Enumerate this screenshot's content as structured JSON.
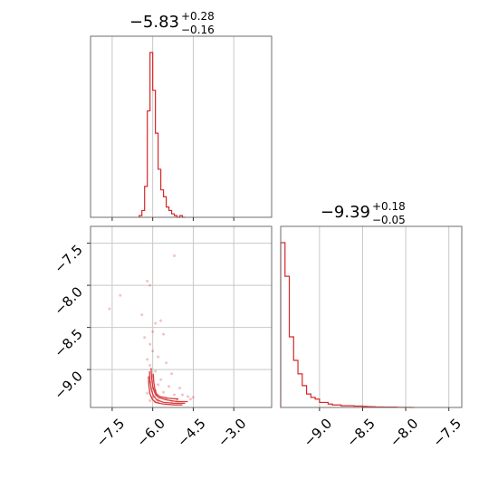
{
  "chart_data": [
    {
      "type": "histogram",
      "panel": "marginal-param-1",
      "title": {
        "median": "−5.83",
        "plus": "+0.28",
        "minus": "−0.16"
      },
      "xlim": [
        -8.3,
        -1.6
      ],
      "xticks": [
        -7.5,
        -6.0,
        -4.5,
        -3.0
      ],
      "grid": true,
      "bins": {
        "edges": [
          -6.5,
          -6.4,
          -6.3,
          -6.2,
          -6.1,
          -6.0,
          -5.9,
          -5.8,
          -5.7,
          -5.6,
          -5.5,
          -5.4,
          -5.3,
          -5.2,
          -5.1,
          -5.0,
          -4.9,
          -4.8
        ],
        "counts": [
          0.01,
          0.04,
          0.18,
          0.62,
          0.96,
          0.74,
          0.49,
          0.28,
          0.16,
          0.12,
          0.06,
          0.04,
          0.02,
          0.01,
          0.0,
          0.01,
          0.0
        ]
      }
    },
    {
      "type": "scatter",
      "panel": "joint-param-1-vs-param-2",
      "xlim": [
        -8.3,
        -1.6
      ],
      "ylim": [
        -9.45,
        -7.3
      ],
      "xticks": [
        -7.5,
        -6.0,
        -4.5,
        -3.0
      ],
      "xticklabels": [
        "−7.5",
        "−6.0",
        "−4.5",
        "−3.0"
      ],
      "yticks": [
        -7.5,
        -8.0,
        -8.5,
        -9.0
      ],
      "yticklabels": [
        "−7.5",
        "−8.0",
        "−8.5",
        "−9.0"
      ],
      "grid": true,
      "points": {
        "x": [
          -5.2,
          -6.2,
          -7.6,
          -7.2,
          -6.1,
          -6.4,
          -5.9,
          -6.0,
          -5.7,
          -6.3,
          -6.1,
          -5.6,
          -6.0,
          -5.8,
          -6.2,
          -6.1,
          -5.9,
          -5.5,
          -6.0,
          -5.3,
          -5.7,
          -6.1,
          -5.8,
          -6.0,
          -5.4,
          -5.9,
          -5.0,
          -6.2,
          -5.6,
          -5.9,
          -6.0,
          -5.2,
          -5.8,
          -4.9,
          -5.5,
          -6.1,
          -4.7,
          -5.1,
          -5.9,
          -4.6,
          -5.3,
          -4.5,
          -5.8
        ],
        "y": [
          -7.65,
          -7.95,
          -8.28,
          -8.12,
          -8.0,
          -8.35,
          -8.45,
          -8.55,
          -8.42,
          -8.62,
          -8.7,
          -8.58,
          -8.78,
          -8.85,
          -8.88,
          -8.95,
          -9.02,
          -8.92,
          -9.08,
          -9.05,
          -9.12,
          -9.15,
          -9.18,
          -9.22,
          -9.2,
          -9.25,
          -9.22,
          -9.28,
          -9.27,
          -9.31,
          -9.33,
          -9.3,
          -9.36,
          -9.3,
          -9.34,
          -9.37,
          -9.32,
          -9.36,
          -9.38,
          -9.35,
          -9.38,
          -9.33,
          -9.39
        ]
      },
      "contours": [
        {
          "x": [
            -6.06,
            -6.04,
            -6.0,
            -5.92,
            -5.8,
            -5.5,
            -5.1,
            -4.7
          ],
          "y": [
            -8.98,
            -9.1,
            -9.2,
            -9.28,
            -9.33,
            -9.36,
            -9.38,
            -9.38
          ]
        },
        {
          "x": [
            -6.12,
            -6.1,
            -6.05,
            -5.98,
            -5.85,
            -5.6,
            -5.2,
            -4.8
          ],
          "y": [
            -9.02,
            -9.14,
            -9.24,
            -9.31,
            -9.36,
            -9.39,
            -9.4,
            -9.4
          ]
        },
        {
          "x": [
            -5.98,
            -5.96,
            -5.92,
            -5.86,
            -5.74,
            -5.45,
            -5.05
          ],
          "y": [
            -9.05,
            -9.15,
            -9.23,
            -9.29,
            -9.32,
            -9.34,
            -9.35
          ]
        },
        {
          "x": [
            -6.16,
            -6.14,
            -6.1,
            -6.02,
            -5.9,
            -5.6,
            -5.2,
            -4.9
          ],
          "y": [
            -9.08,
            -9.2,
            -9.29,
            -9.35,
            -9.39,
            -9.41,
            -9.42,
            -9.42
          ]
        }
      ]
    },
    {
      "type": "histogram",
      "panel": "marginal-param-2",
      "title": {
        "median": "−9.39",
        "plus": "+0.18",
        "minus": "−0.05"
      },
      "xlim": [
        -9.45,
        -7.35
      ],
      "xticks": [
        -9.0,
        -8.5,
        -8.0,
        -7.5
      ],
      "xticklabels": [
        "−9.0",
        "−8.5",
        "−8.0",
        "−7.5"
      ],
      "grid": true,
      "bins": {
        "edges": [
          -9.45,
          -9.4,
          -9.35,
          -9.3,
          -9.25,
          -9.2,
          -9.15,
          -9.1,
          -9.05,
          -9.0,
          -8.95,
          -8.9,
          -8.85,
          -8.8,
          -8.75,
          -8.7,
          -8.65,
          -8.6,
          -8.55,
          -8.5,
          -8.45,
          -8.4,
          -8.35,
          -8.3,
          -8.25,
          -8.2,
          -8.15,
          -8.1,
          -8.05,
          -8.0,
          -7.95,
          -7.9
        ],
        "counts": [
          0.98,
          0.78,
          0.42,
          0.28,
          0.2,
          0.13,
          0.08,
          0.06,
          0.05,
          0.03,
          0.03,
          0.02,
          0.015,
          0.015,
          0.01,
          0.01,
          0.01,
          0.008,
          0.008,
          0.006,
          0.005,
          0.004,
          0.003,
          0.003,
          0.002,
          0.002,
          0.002,
          0.001,
          0.001,
          0.001,
          0.0
        ]
      }
    }
  ],
  "colors": {
    "series": "#d62728",
    "frame": "#6e6e6e",
    "grid": "#c8c8c8"
  }
}
